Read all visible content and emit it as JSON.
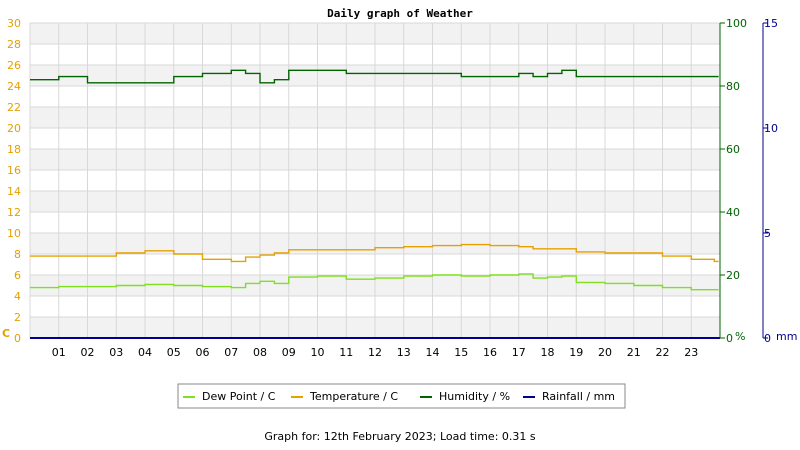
{
  "chart_data": {
    "type": "line",
    "title": "Daily graph of Weather",
    "x_ticks": [
      "01",
      "02",
      "03",
      "04",
      "05",
      "06",
      "07",
      "08",
      "09",
      "10",
      "11",
      "12",
      "13",
      "14",
      "15",
      "16",
      "17",
      "18",
      "19",
      "20",
      "21",
      "22",
      "23"
    ],
    "xlim": [
      0,
      24
    ],
    "axes": {
      "left": {
        "unit_label": "C",
        "range": [
          0,
          30
        ],
        "ticks": [
          0,
          2,
          4,
          6,
          8,
          10,
          12,
          14,
          16,
          18,
          20,
          22,
          24,
          26,
          28,
          30
        ],
        "color": "#e6a000"
      },
      "right1": {
        "unit_label": "%",
        "range": [
          0,
          100
        ],
        "ticks": [
          0,
          20,
          40,
          60,
          80,
          100
        ],
        "color": "#006400"
      },
      "right2": {
        "unit_label": "mm",
        "range": [
          0,
          15
        ],
        "ticks": [
          0,
          5,
          10,
          15
        ],
        "color": "#00008b"
      }
    },
    "grid": true,
    "legend_position": "bottom",
    "series": [
      {
        "name": "Dew Point / C",
        "axis": "left",
        "color": "#7fe020",
        "x": [
          0,
          1,
          2,
          3,
          4,
          5,
          6,
          7,
          7.5,
          8,
          8.5,
          9,
          10,
          11,
          12,
          13,
          14,
          15,
          16,
          17,
          17.5,
          18,
          18.5,
          19,
          20,
          21,
          22,
          23,
          23.8
        ],
        "y": [
          4.8,
          4.9,
          4.9,
          5.0,
          5.1,
          5.0,
          4.9,
          4.8,
          5.2,
          5.4,
          5.2,
          5.8,
          5.9,
          5.6,
          5.7,
          5.9,
          6.0,
          5.9,
          6.0,
          6.1,
          5.7,
          5.8,
          5.9,
          5.3,
          5.2,
          5.0,
          4.8,
          4.6,
          4.6
        ]
      },
      {
        "name": "Temperature / C",
        "axis": "left",
        "color": "#e6a000",
        "x": [
          0,
          1,
          2,
          3,
          4,
          5,
          6,
          7,
          7.5,
          8,
          8.5,
          9,
          10,
          11,
          12,
          13,
          14,
          15,
          16,
          17,
          17.5,
          18,
          18.5,
          19,
          20,
          21,
          22,
          23,
          23.8
        ],
        "y": [
          7.8,
          7.8,
          7.8,
          8.1,
          8.3,
          8.0,
          7.5,
          7.3,
          7.7,
          7.9,
          8.1,
          8.4,
          8.4,
          8.4,
          8.6,
          8.7,
          8.8,
          8.9,
          8.8,
          8.7,
          8.5,
          8.5,
          8.5,
          8.2,
          8.1,
          8.1,
          7.8,
          7.5,
          7.3
        ]
      },
      {
        "name": "Humidity / %",
        "axis": "right1",
        "color": "#006400",
        "x": [
          0,
          1,
          2,
          3,
          4,
          4.5,
          5,
          6,
          6.5,
          7,
          7.5,
          8,
          8.5,
          9,
          10,
          11,
          12,
          13,
          14,
          15,
          16,
          17,
          17.5,
          18,
          18.5,
          19,
          20,
          21,
          22,
          23,
          23.8
        ],
        "y": [
          82,
          83,
          81,
          81,
          81,
          81,
          83,
          84,
          84,
          85,
          84,
          81,
          82,
          85,
          85,
          84,
          84,
          84,
          84,
          83,
          83,
          84,
          83,
          84,
          85,
          83,
          83,
          83,
          83,
          83,
          83
        ]
      },
      {
        "name": "Rainfall / mm",
        "axis": "right2",
        "color": "#00008b",
        "x": [
          0,
          24
        ],
        "y": [
          0,
          0
        ]
      }
    ]
  },
  "footer": {
    "text": "Graph for: 12th February 2023; Load time: 0.31 s"
  }
}
